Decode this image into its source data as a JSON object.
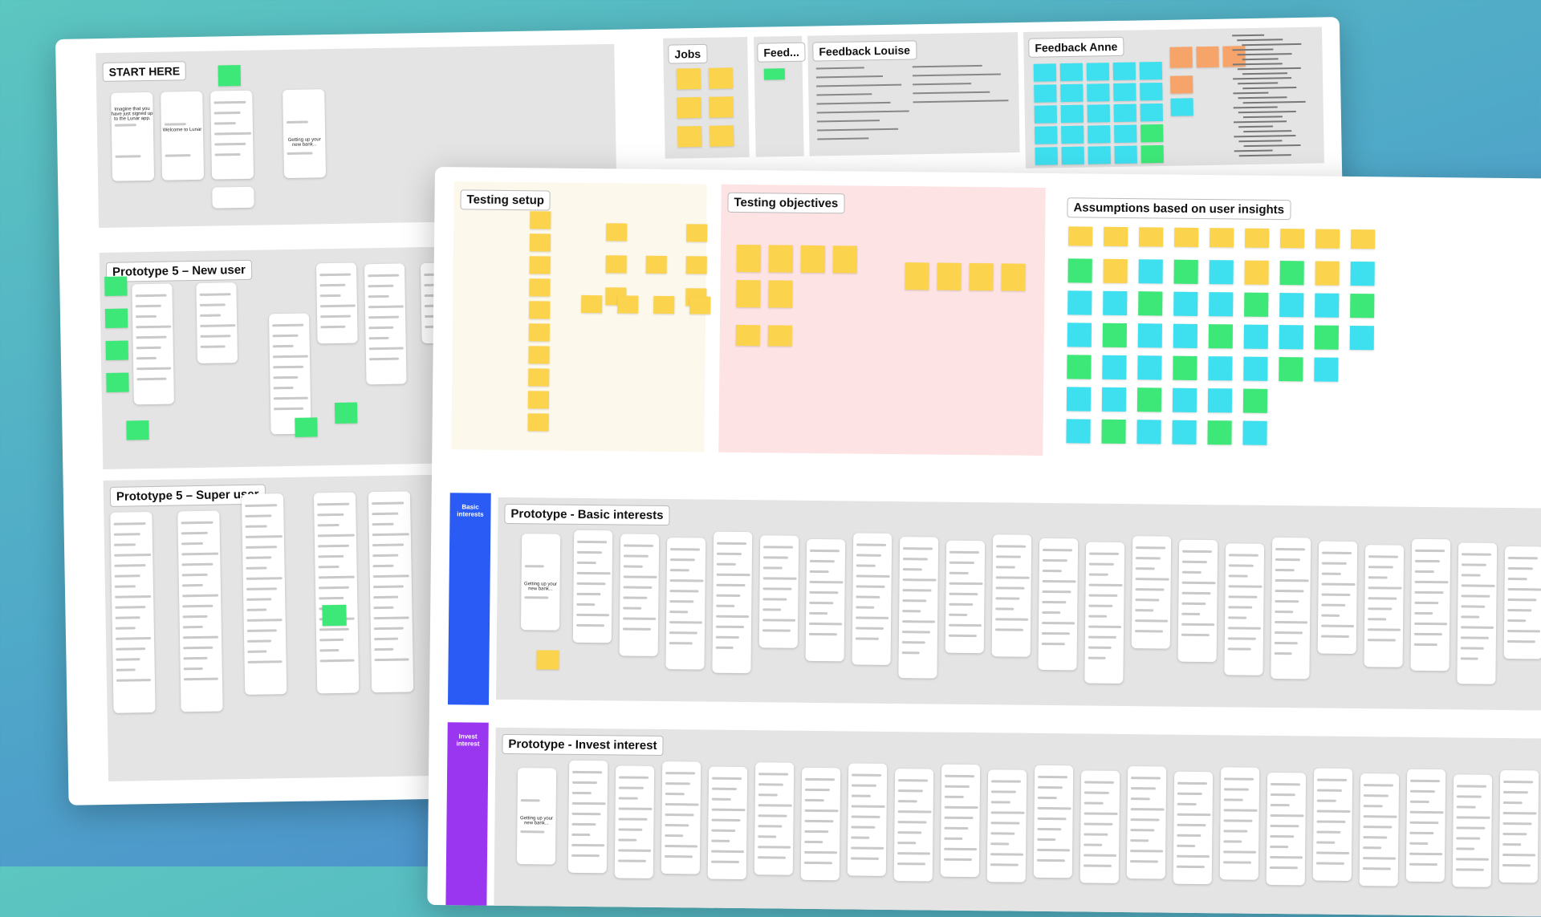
{
  "back_board": {
    "start_here": "START HERE",
    "jobs": "Jobs",
    "feed": "Feed...",
    "feedback_louise": "Feedback Louise",
    "feedback_anne": "Feedback Anne",
    "prototype_new_user": "Prototype 5 – New user",
    "prototype_super_user": "Prototype 5 – Super user",
    "phone_signup": "Imagine that you have just signed up to the Lunar app.",
    "phone_welcome": "Welcome to Lunar",
    "phone_loading": "Getting up your new bank..."
  },
  "front_board": {
    "testing_setup": "Testing setup",
    "testing_objectives": "Testing objectives",
    "assumptions": "Assumptions based on user insights",
    "basic_tag": "Basic interests",
    "basic_prototype": "Prototype - Basic interests",
    "invest_tag": "Invest interest",
    "invest_prototype": "Prototype - Invest interest"
  }
}
